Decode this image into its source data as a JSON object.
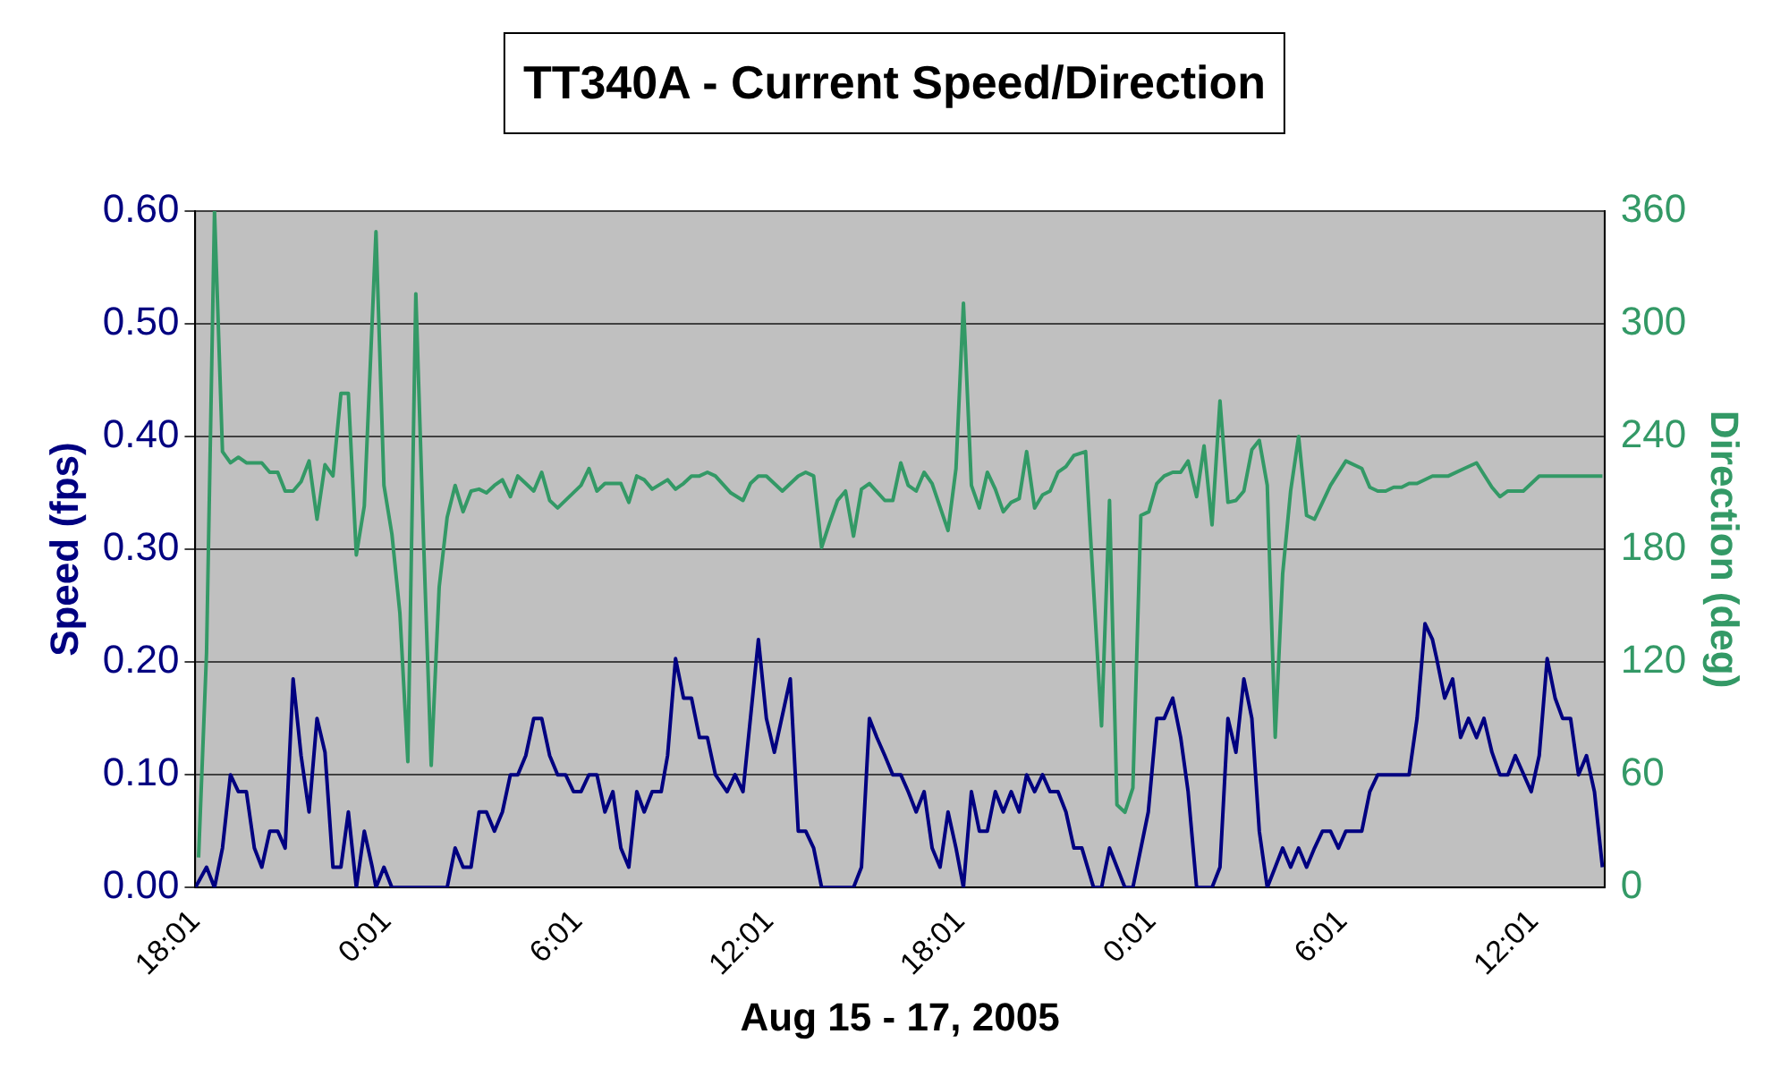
{
  "chart_data": {
    "type": "line",
    "title": "TT340A - Current Speed/Direction",
    "xlabel": "Aug 15 - 17, 2005",
    "ylabel": "Speed (fps)",
    "y2label": "Direction (deg)",
    "xlim": [
      "2005-08-15T18:01",
      "2005-08-17T14:14"
    ],
    "xticks": [
      {
        "value": "2005-08-15T18:01",
        "label": "18:01"
      },
      {
        "value": "2005-08-16T00:01",
        "label": "0:01"
      },
      {
        "value": "2005-08-16T06:01",
        "label": "6:01"
      },
      {
        "value": "2005-08-16T12:01",
        "label": "12:01"
      },
      {
        "value": "2005-08-16T18:01",
        "label": "18:01"
      },
      {
        "value": "2005-08-17T00:01",
        "label": "0:01"
      },
      {
        "value": "2005-08-17T06:01",
        "label": "6:01"
      },
      {
        "value": "2005-08-17T12:01",
        "label": "12:01"
      }
    ],
    "ylim": [
      0,
      0.6
    ],
    "yticks": [
      {
        "value": 0,
        "label": "0.00"
      },
      {
        "value": 0.1,
        "label": "0.10"
      },
      {
        "value": 0.2,
        "label": "0.20"
      },
      {
        "value": 0.3,
        "label": "0.30"
      },
      {
        "value": 0.4,
        "label": "0.40"
      },
      {
        "value": 0.5,
        "label": "0.50"
      },
      {
        "value": 0.6,
        "label": "0.60"
      }
    ],
    "y2lim": [
      0,
      360
    ],
    "y2ticks": [
      0,
      60,
      120,
      180,
      240,
      300,
      360
    ],
    "grid": "y",
    "line_style": "solid",
    "series": [
      {
        "color": "#000080",
        "x": [
          "2005-08-15T18:01",
          "2005-08-15T18:22",
          "2005-08-15T18:37",
          "2005-08-15T18:52",
          "2005-08-15T19:07",
          "2005-08-15T19:22",
          "2005-08-15T19:37",
          "2005-08-15T19:52",
          "2005-08-15T20:06",
          "2005-08-15T20:21",
          "2005-08-15T20:36",
          "2005-08-15T20:50",
          "2005-08-15T21:05",
          "2005-08-15T21:20",
          "2005-08-15T21:35",
          "2005-08-15T21:50",
          "2005-08-15T22:05",
          "2005-08-15T22:20",
          "2005-08-15T22:35",
          "2005-08-15T22:49",
          "2005-08-15T23:04",
          "2005-08-15T23:19",
          "2005-08-15T23:34",
          "2005-08-15T23:41",
          "2005-08-15T23:56",
          "2005-08-16T00:11",
          "2005-08-16T01:55",
          "2005-08-16T02:10",
          "2005-08-16T02:25",
          "2005-08-16T02:40",
          "2005-08-16T02:55",
          "2005-08-16T03:09",
          "2005-08-16T03:24",
          "2005-08-16T03:39",
          "2005-08-16T03:54",
          "2005-08-16T04:08",
          "2005-08-16T04:23",
          "2005-08-16T04:38",
          "2005-08-16T04:53",
          "2005-08-16T05:08",
          "2005-08-16T05:23",
          "2005-08-16T05:38",
          "2005-08-16T05:53",
          "2005-08-16T06:07",
          "2005-08-16T06:22",
          "2005-08-16T06:37",
          "2005-08-16T06:52",
          "2005-08-16T07:07",
          "2005-08-16T07:22",
          "2005-08-16T07:37",
          "2005-08-16T07:52",
          "2005-08-16T08:06",
          "2005-08-16T08:21",
          "2005-08-16T08:38",
          "2005-08-16T08:50",
          "2005-08-16T09:05",
          "2005-08-16T09:20",
          "2005-08-16T09:35",
          "2005-08-16T09:50",
          "2005-08-16T10:05",
          "2005-08-16T10:20",
          "2005-08-16T10:42",
          "2005-08-16T10:57",
          "2005-08-16T11:12",
          "2005-08-16T11:41",
          "2005-08-16T11:56",
          "2005-08-16T12:11",
          "2005-08-16T12:41",
          "2005-08-16T12:56",
          "2005-08-16T13:10",
          "2005-08-16T13:25",
          "2005-08-16T13:40",
          "2005-08-16T14:40",
          "2005-08-16T14:55",
          "2005-08-16T15:10",
          "2005-08-16T15:24",
          "2005-08-16T15:39",
          "2005-08-16T15:54",
          "2005-08-16T16:09",
          "2005-08-16T16:23",
          "2005-08-16T16:38",
          "2005-08-16T16:53",
          "2005-08-16T17:08",
          "2005-08-16T17:23",
          "2005-08-16T17:38",
          "2005-08-16T17:53",
          "2005-08-16T18:07",
          "2005-08-16T18:22",
          "2005-08-16T18:37",
          "2005-08-16T18:52",
          "2005-08-16T19:07",
          "2005-08-16T19:22",
          "2005-08-16T19:37",
          "2005-08-16T19:52",
          "2005-08-16T20:06",
          "2005-08-16T20:21",
          "2005-08-16T20:36",
          "2005-08-16T20:50",
          "2005-08-16T21:05",
          "2005-08-16T21:20",
          "2005-08-16T21:35",
          "2005-08-16T21:50",
          "2005-08-16T22:12",
          "2005-08-16T22:27",
          "2005-08-16T22:42",
          "2005-08-16T23:11",
          "2005-08-16T23:26",
          "2005-08-16T23:55",
          "2005-08-17T00:11",
          "2005-08-17T00:25",
          "2005-08-17T00:41",
          "2005-08-17T00:56",
          "2005-08-17T01:10",
          "2005-08-17T01:26",
          "2005-08-17T01:55",
          "2005-08-17T02:10",
          "2005-08-17T02:25",
          "2005-08-17T02:40",
          "2005-08-17T02:55",
          "2005-08-17T03:10",
          "2005-08-17T03:24",
          "2005-08-17T03:39",
          "2005-08-17T03:54",
          "2005-08-17T04:08",
          "2005-08-17T04:23",
          "2005-08-17T04:38",
          "2005-08-17T04:53",
          "2005-08-17T05:08",
          "2005-08-17T05:23",
          "2005-08-17T05:38",
          "2005-08-17T05:53",
          "2005-08-17T06:07",
          "2005-08-17T06:37",
          "2005-08-17T06:52",
          "2005-08-17T07:07",
          "2005-08-17T08:06",
          "2005-08-17T08:21",
          "2005-08-17T08:36",
          "2005-08-17T08:50",
          "2005-08-17T08:58",
          "2005-08-17T09:13",
          "2005-08-17T09:28",
          "2005-08-17T09:43",
          "2005-08-17T09:58",
          "2005-08-17T10:13",
          "2005-08-17T10:27",
          "2005-08-17T10:42",
          "2005-08-17T10:57",
          "2005-08-17T11:12",
          "2005-08-17T11:26",
          "2005-08-17T11:56",
          "2005-08-17T12:11",
          "2005-08-17T12:26",
          "2005-08-17T12:41",
          "2005-08-17T12:55",
          "2005-08-17T13:10",
          "2005-08-17T13:25",
          "2005-08-17T13:40",
          "2005-08-17T13:55",
          "2005-08-17T14:10"
        ],
        "values": [
          0,
          0.018,
          0,
          0.035,
          0.1,
          0.085,
          0.085,
          0.035,
          0.018,
          0.05,
          0.05,
          0.035,
          0.185,
          0.117,
          0.067,
          0.15,
          0.12,
          0.018,
          0.018,
          0.067,
          0,
          0.05,
          0.018,
          0,
          0.018,
          0,
          0,
          0.035,
          0.018,
          0.018,
          0.067,
          0.067,
          0.05,
          0.067,
          0.1,
          0.1,
          0.117,
          0.15,
          0.15,
          0.117,
          0.1,
          0.1,
          0.085,
          0.085,
          0.1,
          0.1,
          0.067,
          0.085,
          0.035,
          0.018,
          0.085,
          0.067,
          0.085,
          0.085,
          0.117,
          0.203,
          0.168,
          0.168,
          0.133,
          0.133,
          0.1,
          0.085,
          0.1,
          0.085,
          0.22,
          0.15,
          0.12,
          0.185,
          0.05,
          0.05,
          0.035,
          0,
          0,
          0.018,
          0.15,
          0.133,
          0.117,
          0.1,
          0.1,
          0.085,
          0.067,
          0.085,
          0.035,
          0.018,
          0.067,
          0.035,
          0,
          0.085,
          0.05,
          0.05,
          0.085,
          0.067,
          0.085,
          0.067,
          0.1,
          0.085,
          0.1,
          0.085,
          0.085,
          0.067,
          0.035,
          0.035,
          0,
          0,
          0.035,
          0,
          0,
          0.067,
          0.15,
          0.15,
          0.168,
          0.133,
          0.085,
          0,
          0,
          0.018,
          0.15,
          0.12,
          0.185,
          0.15,
          0.05,
          0,
          0.018,
          0.035,
          0.018,
          0.035,
          0.018,
          0.035,
          0.05,
          0.05,
          0.035,
          0.05,
          0.05,
          0.085,
          0.1,
          0.1,
          0.15,
          0.234,
          0.22,
          0.203,
          0.168,
          0.185,
          0.133,
          0.15,
          0.133,
          0.15,
          0.12,
          0.1,
          0.1,
          0.117,
          0.085,
          0.117,
          0.203,
          0.168,
          0.15,
          0.15,
          0.1,
          0.117,
          0.085,
          0.018
        ]
      },
      {
        "axis": "y2",
        "color": "#339966",
        "x": [
          "2005-08-15T18:07",
          "2005-08-15T18:22",
          "2005-08-15T18:37",
          "2005-08-15T18:52",
          "2005-08-15T19:07",
          "2005-08-15T19:22",
          "2005-08-15T19:37",
          "2005-08-15T20:06",
          "2005-08-15T20:21",
          "2005-08-15T20:36",
          "2005-08-15T20:50",
          "2005-08-15T21:05",
          "2005-08-15T21:20",
          "2005-08-15T21:35",
          "2005-08-15T21:50",
          "2005-08-15T22:05",
          "2005-08-15T22:20",
          "2005-08-15T22:35",
          "2005-08-15T22:49",
          "2005-08-15T23:04",
          "2005-08-15T23:19",
          "2005-08-15T23:41",
          "2005-08-15T23:56",
          "2005-08-16T00:11",
          "2005-08-16T00:26",
          "2005-08-16T00:41",
          "2005-08-16T00:56",
          "2005-08-16T01:11",
          "2005-08-16T01:25",
          "2005-08-16T01:40",
          "2005-08-16T01:55",
          "2005-08-16T02:10",
          "2005-08-16T02:25",
          "2005-08-16T02:40",
          "2005-08-16T02:55",
          "2005-08-16T03:09",
          "2005-08-16T03:24",
          "2005-08-16T03:39",
          "2005-08-16T03:54",
          "2005-08-16T04:08",
          "2005-08-16T04:23",
          "2005-08-16T04:38",
          "2005-08-16T04:53",
          "2005-08-16T05:08",
          "2005-08-16T05:23",
          "2005-08-16T06:07",
          "2005-08-16T06:22",
          "2005-08-16T06:37",
          "2005-08-16T06:52",
          "2005-08-16T07:22",
          "2005-08-16T07:37",
          "2005-08-16T07:52",
          "2005-08-16T08:06",
          "2005-08-16T08:21",
          "2005-08-16T08:50",
          "2005-08-16T09:05",
          "2005-08-16T09:20",
          "2005-08-16T09:35",
          "2005-08-16T09:50",
          "2005-08-16T10:05",
          "2005-08-16T10:20",
          "2005-08-16T10:49",
          "2005-08-16T11:12",
          "2005-08-16T11:26",
          "2005-08-16T11:41",
          "2005-08-16T11:56",
          "2005-08-16T12:26",
          "2005-08-16T12:56",
          "2005-08-16T13:10",
          "2005-08-16T13:25",
          "2005-08-16T13:40",
          "2005-08-16T13:55",
          "2005-08-16T14:10",
          "2005-08-16T14:25",
          "2005-08-16T14:40",
          "2005-08-16T14:55",
          "2005-08-16T15:10",
          "2005-08-16T15:39",
          "2005-08-16T15:54",
          "2005-08-16T16:09",
          "2005-08-16T16:23",
          "2005-08-16T16:38",
          "2005-08-16T16:53",
          "2005-08-16T17:08",
          "2005-08-16T17:38",
          "2005-08-16T17:53",
          "2005-08-16T18:07",
          "2005-08-16T18:22",
          "2005-08-16T18:37",
          "2005-08-16T18:52",
          "2005-08-16T19:07",
          "2005-08-16T19:22",
          "2005-08-16T19:37",
          "2005-08-16T19:52",
          "2005-08-16T20:06",
          "2005-08-16T20:21",
          "2005-08-16T20:36",
          "2005-08-16T20:50",
          "2005-08-16T21:05",
          "2005-08-16T21:20",
          "2005-08-16T21:35",
          "2005-08-16T21:57",
          "2005-08-16T22:27",
          "2005-08-16T22:42",
          "2005-08-16T22:56",
          "2005-08-16T23:11",
          "2005-08-16T23:26",
          "2005-08-16T23:41",
          "2005-08-16T23:56",
          "2005-08-17T00:11",
          "2005-08-17T00:25",
          "2005-08-17T00:41",
          "2005-08-17T00:56",
          "2005-08-17T01:10",
          "2005-08-17T01:26",
          "2005-08-17T01:40",
          "2005-08-17T01:55",
          "2005-08-17T02:10",
          "2005-08-17T02:25",
          "2005-08-17T02:40",
          "2005-08-17T02:55",
          "2005-08-17T03:10",
          "2005-08-17T03:24",
          "2005-08-17T03:39",
          "2005-08-17T03:54",
          "2005-08-17T04:08",
          "2005-08-17T04:23",
          "2005-08-17T04:38",
          "2005-08-17T04:53",
          "2005-08-17T05:08",
          "2005-08-17T05:23",
          "2005-08-17T05:38",
          "2005-08-17T06:07",
          "2005-08-17T06:37",
          "2005-08-17T06:52",
          "2005-08-17T07:07",
          "2005-08-17T07:22",
          "2005-08-17T07:37",
          "2005-08-17T07:52",
          "2005-08-17T08:06",
          "2005-08-17T08:21",
          "2005-08-17T08:50",
          "2005-08-17T09:20",
          "2005-08-17T09:50",
          "2005-08-17T10:13",
          "2005-08-17T10:42",
          "2005-08-17T10:57",
          "2005-08-17T11:12",
          "2005-08-17T11:41",
          "2005-08-17T12:11",
          "2005-08-17T14:10"
        ],
        "values": [
          16,
          125,
          360,
          232,
          226,
          229,
          226,
          226,
          221,
          221,
          211,
          211,
          216,
          227,
          196,
          225,
          219,
          263,
          263,
          177,
          203,
          349,
          214,
          188,
          146,
          67,
          316,
          181,
          65,
          160,
          197,
          214,
          200,
          211,
          212,
          210,
          214,
          217,
          208,
          219,
          215,
          211,
          221,
          206,
          202,
          214,
          223,
          211,
          215,
          215,
          205,
          219,
          217,
          212,
          217,
          212,
          215,
          219,
          219,
          221,
          219,
          210,
          206,
          215,
          219,
          219,
          211,
          219,
          221,
          219,
          181,
          194,
          206,
          211,
          187,
          212,
          215,
          206,
          206,
          226,
          214,
          211,
          221,
          215,
          190,
          223,
          311,
          214,
          202,
          221,
          212,
          200,
          205,
          207,
          232,
          202,
          209,
          211,
          221,
          224,
          230,
          232,
          86,
          206,
          44,
          40,
          53,
          198,
          200,
          215,
          219,
          221,
          221,
          227,
          208,
          235,
          193,
          259,
          205,
          206,
          211,
          233,
          238,
          214,
          80,
          167,
          211,
          240,
          198,
          196,
          205,
          214,
          227,
          223,
          213,
          211,
          211,
          213,
          213,
          215,
          215,
          219,
          219,
          223,
          226,
          213,
          208,
          211,
          211,
          219,
          219
        ]
      }
    ]
  }
}
